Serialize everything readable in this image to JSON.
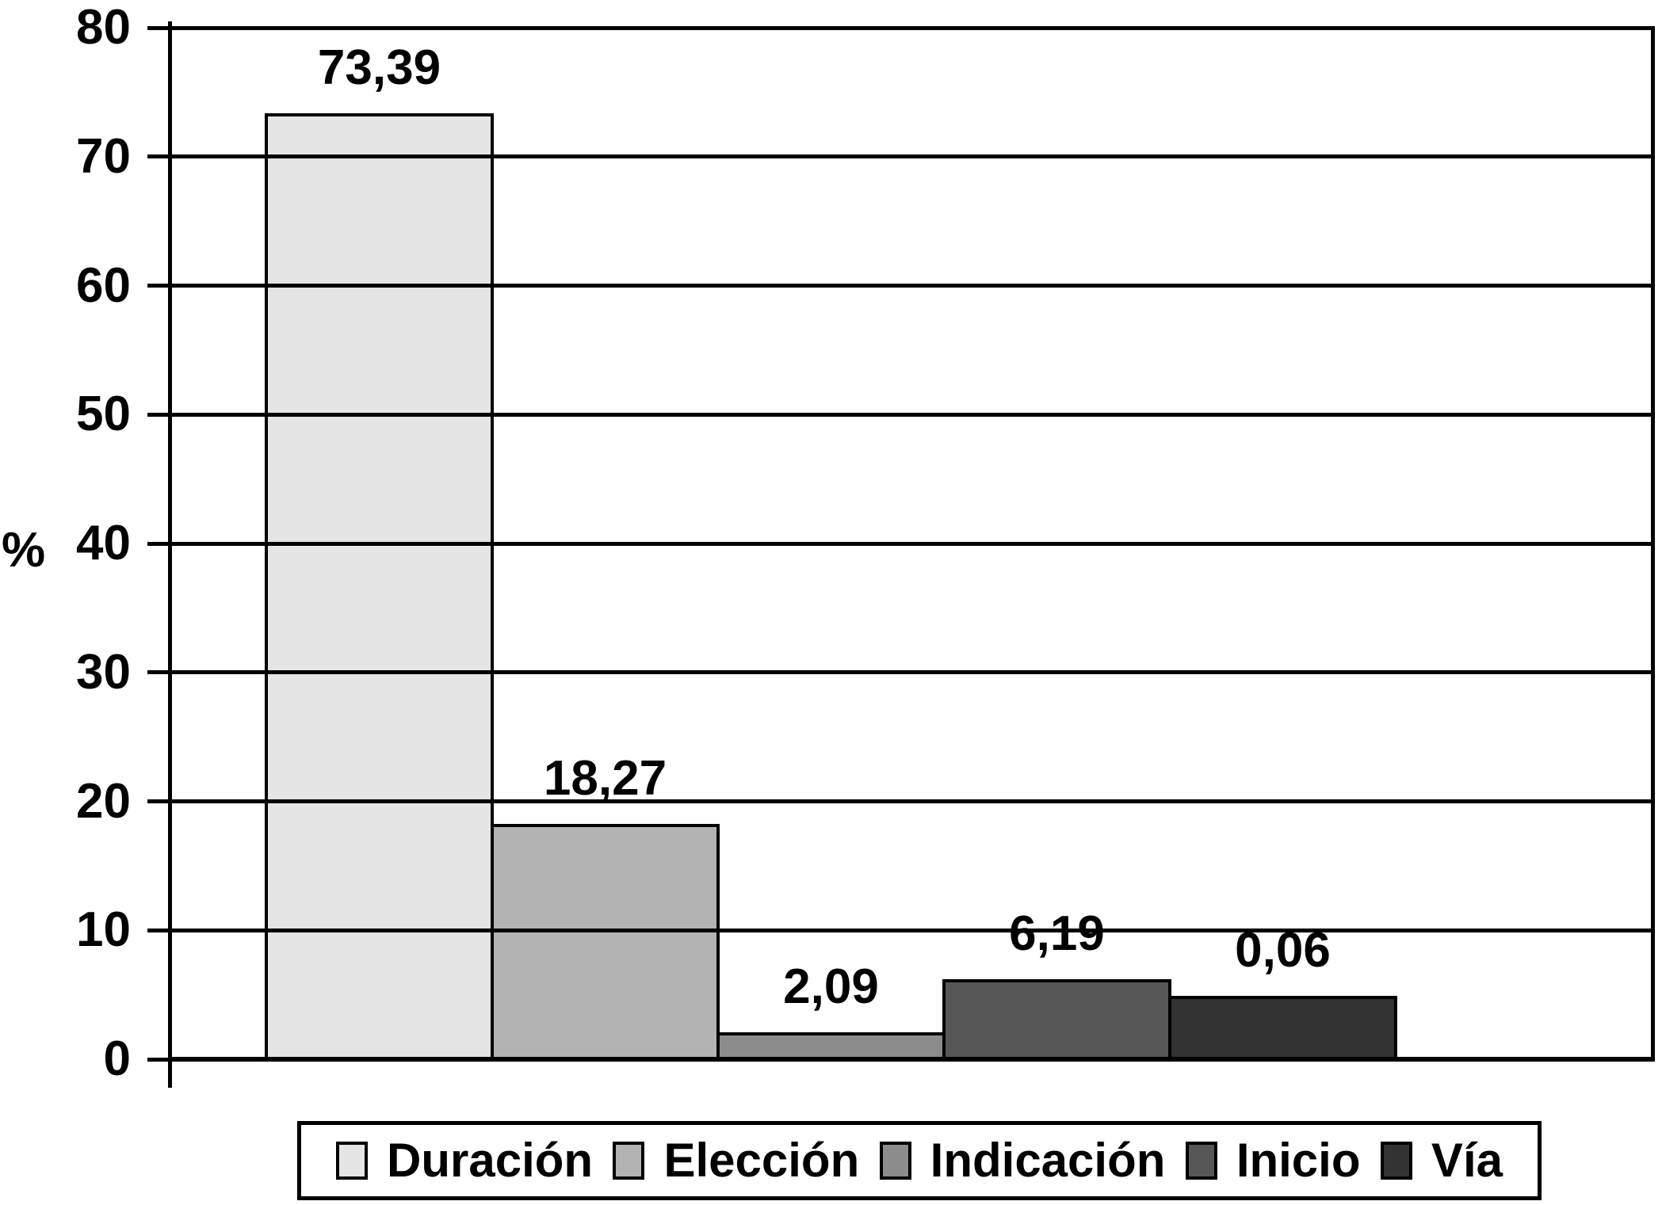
{
  "figure": {
    "background_color": "#ffffff",
    "axis_color": "#000000",
    "text_color": "#000000"
  },
  "chart_data": {
    "type": "bar",
    "title": "",
    "xlabel": "",
    "ylabel": "%",
    "ylim": [
      0,
      80
    ],
    "ytick_step": 10,
    "yticks": [
      0,
      10,
      20,
      30,
      40,
      50,
      60,
      70,
      80
    ],
    "grid": true,
    "gridlines_over_bars": true,
    "legend_position": "bottom",
    "categories": [
      "Duración",
      "Elección",
      "Indicación",
      "Inicio",
      "Vía"
    ],
    "values": [
      73.39,
      18.27,
      2.09,
      6.19,
      0.06
    ],
    "value_labels": [
      "73,39",
      "18,27",
      "2,09",
      "6,19",
      "0,06"
    ],
    "bar_display_heights": [
      73.39,
      18.27,
      2.09,
      6.19,
      4.9
    ],
    "bar_colors": [
      "#e5e5e5",
      "#b3b3b3",
      "#8c8c8c",
      "#575757",
      "#333333"
    ],
    "bar_border_color": "#000000"
  }
}
